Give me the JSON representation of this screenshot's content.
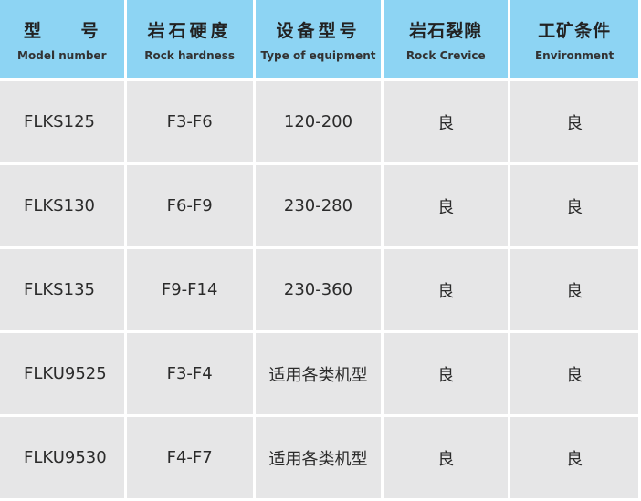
{
  "colors": {
    "header_bg": "#8dd4f3",
    "cell_bg": "#e6e6e7"
  },
  "headers": [
    {
      "zh_parts": [
        "型",
        "号"
      ],
      "zh": "型 号",
      "en": "Model number"
    },
    {
      "zh": "岩石硬度",
      "en": "Rock hardness"
    },
    {
      "zh": "设备型号",
      "en": "Type of equipment"
    },
    {
      "zh": "岩石裂隙",
      "en": "Rock Crevice"
    },
    {
      "zh": "工矿条件",
      "en": "Environment"
    }
  ],
  "rows": [
    [
      "FLKS125",
      "F3-F6",
      "120-200",
      "良",
      "良"
    ],
    [
      "FLKS130",
      "F6-F9",
      "230-280",
      "良",
      "良"
    ],
    [
      "FLKS135",
      "F9-F14",
      "230-360",
      "良",
      "良"
    ],
    [
      "FLKU9525",
      "F3-F4",
      "适用各类机型",
      "良",
      "良"
    ],
    [
      "FLKU9530",
      "F4-F7",
      "适用各类机型",
      "良",
      "良"
    ]
  ]
}
